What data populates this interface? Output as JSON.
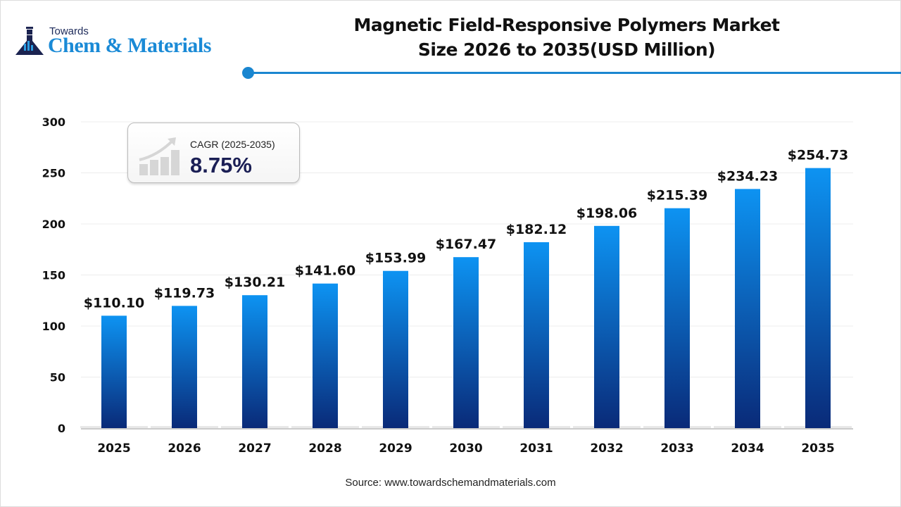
{
  "logo": {
    "line1": "Towards",
    "line2": "Chem & Materials"
  },
  "title_line1": "Magnetic Field-Responsive Polymers Market",
  "title_line2": "Size 2026 to 2035(USD Million)",
  "cagr": {
    "label": "CAGR (2025-2035)",
    "value": "8.75%",
    "icon": "growth-chart-icon"
  },
  "source": "Source: www.towardschemandmaterials.com",
  "colors": {
    "accent": "#1a86d0",
    "bar_top": "#0d93f2",
    "bar_bottom": "#0a2a78"
  },
  "chart_data": {
    "type": "bar",
    "title": "Magnetic Field-Responsive Polymers Market Size 2026 to 2035(USD Million)",
    "categories": [
      "2025",
      "2026",
      "2027",
      "2028",
      "2029",
      "2030",
      "2031",
      "2032",
      "2033",
      "2034",
      "2035"
    ],
    "values": [
      110.1,
      119.73,
      130.21,
      141.6,
      153.99,
      167.47,
      182.12,
      198.06,
      215.39,
      234.23,
      254.73
    ],
    "data_labels": [
      "$110.10",
      "$119.73",
      "$130.21",
      "$141.60",
      "$153.99",
      "$167.47",
      "$182.12",
      "$198.06",
      "$215.39",
      "$234.23",
      "$254.73"
    ],
    "ylim": [
      0,
      300
    ],
    "yticks": [
      0,
      50,
      100,
      150,
      200,
      250,
      300
    ],
    "grid": true,
    "xlabel": "",
    "ylabel": ""
  }
}
